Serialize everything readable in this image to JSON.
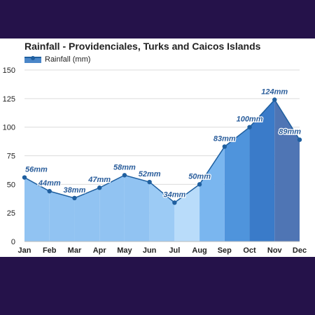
{
  "chart_data": {
    "type": "area",
    "title": "Rainfall - Providenciales, Turks and Caicos Islands",
    "xlabel": "",
    "ylabel": "",
    "ylim": [
      0,
      150
    ],
    "yticks": [
      0,
      25,
      50,
      75,
      100,
      125,
      150
    ],
    "grid": true,
    "legend_position": "top-left",
    "categories": [
      "Jan",
      "Feb",
      "Mar",
      "Apr",
      "May",
      "Jun",
      "Jul",
      "Aug",
      "Sep",
      "Oct",
      "Nov",
      "Dec"
    ],
    "series": [
      {
        "name": "Rainfall (mm)",
        "values": [
          56,
          44,
          38,
          47,
          58,
          52,
          34,
          50,
          83,
          100,
          124,
          89
        ],
        "data_labels": [
          "56mm",
          "44mm",
          "38mm",
          "47mm",
          "58mm",
          "52mm",
          "34mm",
          "50mm",
          "83mm",
          "100mm",
          "124mm",
          "89mm"
        ],
        "color": "#1f5f9f",
        "fill_colors": [
          "#91c3f2",
          "#91c3f2",
          "#91c3f2",
          "#91c3f2",
          "#91c3f2",
          "#9ccbf5",
          "#b9dcfa",
          "#7ab6ef",
          "#4f94dc",
          "#3a7bc9",
          "#4f75b4",
          "#4f94dc"
        ]
      }
    ]
  }
}
